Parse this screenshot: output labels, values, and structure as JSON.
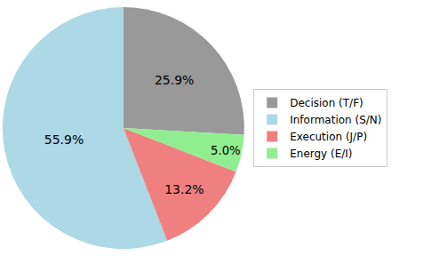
{
  "chart_data": {
    "type": "pie",
    "categories": [
      "Decision (T/F)",
      "Information (S/N)",
      "Execution (J/P)",
      "Energy (E/I)"
    ],
    "values": [
      25.9,
      55.9,
      13.2,
      5.0
    ],
    "value_labels": [
      "25.9%",
      "55.9%",
      "13.2%",
      "5.0%"
    ],
    "colors": [
      "#999999",
      "#add8e6",
      "#f08080",
      "#90ee90"
    ],
    "data_labels": true,
    "legend": "right"
  }
}
